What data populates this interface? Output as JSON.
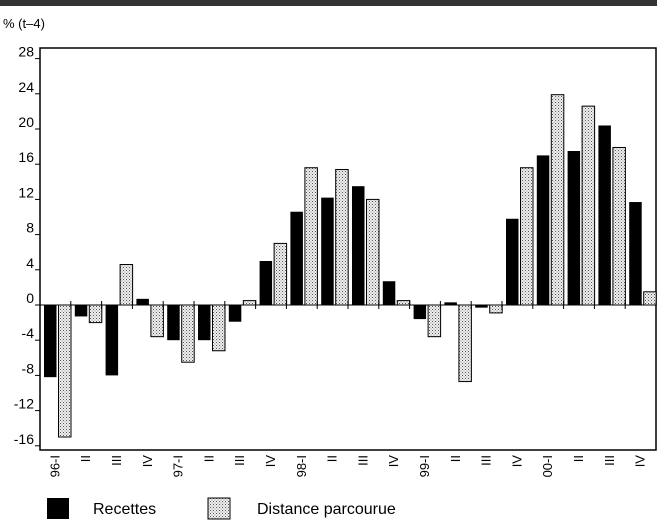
{
  "chart_data": {
    "type": "bar",
    "title": "",
    "unit_label": "% (t–4)",
    "xlabel": "",
    "ylabel": "",
    "ylim": [
      -16,
      28
    ],
    "yticks": [
      28,
      24,
      20,
      16,
      12,
      8,
      4,
      0,
      -4,
      -8,
      -12,
      -16
    ],
    "grid": false,
    "legend_position": "bottom-left",
    "categories": [
      "96-I",
      "II",
      "III",
      "IV",
      "97-I",
      "II",
      "III",
      "IV",
      "98-I",
      "II",
      "III",
      "IV",
      "99-I",
      "II",
      "III",
      "IV",
      "00-I",
      "II",
      "III",
      "IV"
    ],
    "series": [
      {
        "name": "Recettes",
        "color": "#000000",
        "pattern": "solid",
        "values": [
          -8.2,
          -1.3,
          -8.0,
          0.7,
          -4.0,
          -4.0,
          -1.9,
          5.0,
          10.6,
          12.2,
          13.5,
          2.7,
          -1.6,
          0.3,
          -0.3,
          9.8,
          17.0,
          17.5,
          20.4,
          11.7
        ]
      },
      {
        "name": "Distance parcourue",
        "color": "#cccccc",
        "pattern": "dotted",
        "values": [
          -15.0,
          -2.0,
          4.6,
          -3.6,
          -6.5,
          -5.2,
          0.5,
          7.0,
          15.6,
          15.4,
          12.0,
          0.5,
          -3.6,
          -8.7,
          -0.9,
          15.6,
          23.9,
          22.6,
          17.9,
          1.5
        ]
      }
    ]
  }
}
